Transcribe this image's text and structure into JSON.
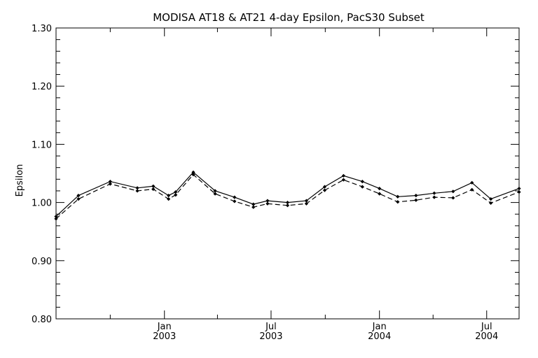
{
  "chart_data": {
    "type": "line",
    "title": "MODISA AT18 & AT21 4-day Epsilon, PacS30 Subset",
    "ylabel": "Epsilon",
    "xlabel": "",
    "ylim": [
      0.8,
      1.3
    ],
    "xlim": [
      "2002-07-01",
      "2004-08-25"
    ],
    "grid": false,
    "y_ticks": [
      "0.80",
      "0.90",
      "1.00",
      "1.10",
      "1.20",
      "1.30"
    ],
    "x_ticks": [
      {
        "date": "2003-01-01",
        "month": "Jan",
        "year": "2003"
      },
      {
        "date": "2003-07-01",
        "month": "Jul",
        "year": "2003"
      },
      {
        "date": "2004-01-01",
        "month": "Jan",
        "year": "2004"
      },
      {
        "date": "2004-07-01",
        "month": "Jul",
        "year": "2004"
      }
    ],
    "x": [
      "2002-07-01",
      "2002-08-08",
      "2002-10-01",
      "2002-11-16",
      "2002-12-13",
      "2003-01-08",
      "2003-01-20",
      "2003-02-19",
      "2003-03-28",
      "2003-04-30",
      "2003-06-01",
      "2003-06-25",
      "2003-07-29",
      "2003-08-30",
      "2003-09-30",
      "2003-11-01",
      "2003-12-03",
      "2004-01-01",
      "2004-02-01",
      "2004-03-03",
      "2004-04-03",
      "2004-05-05",
      "2004-06-06",
      "2004-07-08",
      "2004-08-25"
    ],
    "series": [
      {
        "values": [
          0.976,
          1.012,
          1.036,
          1.025,
          1.028,
          1.012,
          1.018,
          1.052,
          1.02,
          1.009,
          0.997,
          1.003,
          1.0,
          1.003,
          1.027,
          1.046,
          1.036,
          1.024,
          1.01,
          1.012,
          1.016,
          1.019,
          1.034,
          1.006,
          1.024
        ],
        "style": "solid"
      },
      {
        "values": [
          0.972,
          1.006,
          1.032,
          1.02,
          1.023,
          1.006,
          1.013,
          1.048,
          1.015,
          1.002,
          0.992,
          0.998,
          0.995,
          0.998,
          1.021,
          1.039,
          1.027,
          1.015,
          1.001,
          1.004,
          1.009,
          1.008,
          1.022,
          0.999,
          1.018
        ],
        "style": "dashed"
      }
    ]
  }
}
